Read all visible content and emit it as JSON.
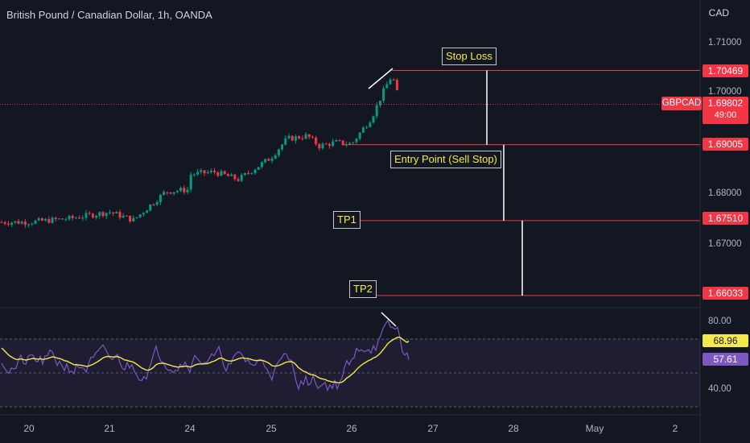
{
  "header": {
    "symbol_title": "British Pound / Canadian Dollar, 1h, OANDA",
    "currency": "CAD"
  },
  "colors": {
    "background": "#131722",
    "up_candle": "#089981",
    "down_candle": "#f23645",
    "level_line": "#f23645",
    "rsi_line": "#7e57c2",
    "rsi_ma_line": "#f5e94b",
    "annotation_text": "#f5e94b"
  },
  "annotations": {
    "stop_loss": "Stop Loss",
    "entry_point": "Entry Point (Sell Stop)",
    "tp1": "TP1",
    "tp2": "TP2"
  },
  "price_tags": {
    "stop_loss": "1.70469",
    "current_symbol": "GBPCAD",
    "current_price": "1.69802",
    "countdown": "49:00",
    "entry": "1.69005",
    "tp1": "1.67510",
    "tp2": "1.66033"
  },
  "rsi_tags": {
    "ma_value": "68.96",
    "rsi_value": "57.61"
  },
  "chart_data": {
    "type": "candlestick",
    "title": "British Pound / Canadian Dollar, 1h, OANDA",
    "y_axis": {
      "ticks": [
        "1.71000",
        "1.70000",
        "1.68000",
        "1.67000"
      ],
      "range": [
        1.6585,
        1.7147
      ]
    },
    "x_axis": {
      "ticks": [
        "20",
        "21",
        "24",
        "25",
        "26",
        "27",
        "28",
        "May",
        "2"
      ]
    },
    "price_path": [
      {
        "day": 20,
        "price": 1.6748
      },
      {
        "day": 20.5,
        "price": 1.6755
      },
      {
        "day": 21,
        "price": 1.6768
      },
      {
        "day": 21.3,
        "price": 1.6752
      },
      {
        "day": 21.7,
        "price": 1.6808
      },
      {
        "day": 24,
        "price": 1.6842
      },
      {
        "day": 24.3,
        "price": 1.6847
      },
      {
        "day": 24.6,
        "price": 1.6832
      },
      {
        "day": 25,
        "price": 1.6875
      },
      {
        "day": 25.2,
        "price": 1.6912
      },
      {
        "day": 25.45,
        "price": 1.6918
      },
      {
        "day": 25.6,
        "price": 1.6898
      },
      {
        "day": 25.8,
        "price": 1.6905
      },
      {
        "day": 26.0,
        "price": 1.6902
      },
      {
        "day": 26.25,
        "price": 1.6955
      },
      {
        "day": 26.4,
        "price": 1.7008
      },
      {
        "day": 26.5,
        "price": 1.7038
      },
      {
        "day": 26.6,
        "price": 1.698
      }
    ],
    "levels": [
      {
        "name": "Stop Loss",
        "price": 1.70469
      },
      {
        "name": "Entry Point (Sell Stop)",
        "price": 1.69005
      },
      {
        "name": "TP1",
        "price": 1.6751
      },
      {
        "name": "TP2",
        "price": 1.66033
      }
    ],
    "current_price": 1.69802,
    "rsi": {
      "ticks": [
        "80.00",
        "40.00"
      ],
      "upper_band": 70,
      "lower_band": 30,
      "rsi_last": 57.61,
      "ma_last": 68.96
    }
  }
}
